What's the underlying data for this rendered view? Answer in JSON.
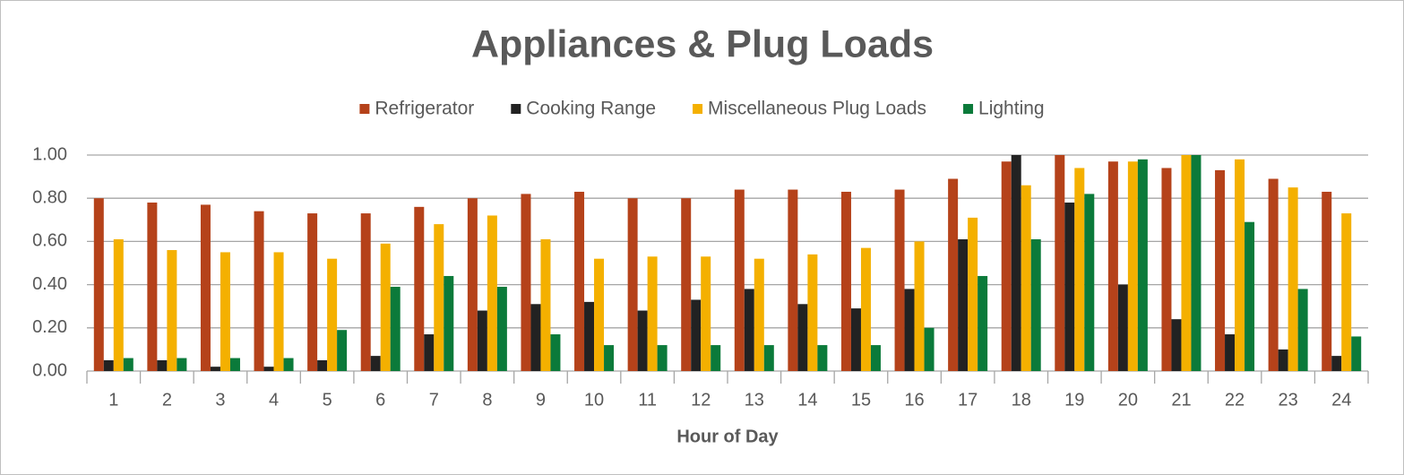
{
  "chart_data": {
    "type": "bar",
    "title": "Appliances & Plug Loads",
    "x_label": "Hour of Day",
    "categories": [
      "1",
      "2",
      "3",
      "4",
      "5",
      "6",
      "7",
      "8",
      "9",
      "10",
      "11",
      "12",
      "13",
      "14",
      "15",
      "16",
      "17",
      "18",
      "19",
      "20",
      "21",
      "22",
      "23",
      "24"
    ],
    "series": [
      {
        "name": "Refrigerator",
        "color": "#b5421a",
        "values": [
          0.8,
          0.78,
          0.77,
          0.74,
          0.73,
          0.73,
          0.76,
          0.8,
          0.82,
          0.83,
          0.8,
          0.8,
          0.84,
          0.84,
          0.83,
          0.84,
          0.89,
          0.97,
          1.0,
          0.97,
          0.94,
          0.93,
          0.89,
          0.83
        ]
      },
      {
        "name": "Cooking Range",
        "color": "#222222",
        "values": [
          0.05,
          0.05,
          0.02,
          0.02,
          0.05,
          0.07,
          0.17,
          0.28,
          0.31,
          0.32,
          0.28,
          0.33,
          0.38,
          0.31,
          0.29,
          0.38,
          0.61,
          1.0,
          0.78,
          0.4,
          0.24,
          0.17,
          0.1,
          0.07
        ]
      },
      {
        "name": "Miscellaneous Plug Loads",
        "color": "#f4b000",
        "values": [
          0.61,
          0.56,
          0.55,
          0.55,
          0.52,
          0.59,
          0.68,
          0.72,
          0.61,
          0.52,
          0.53,
          0.53,
          0.52,
          0.54,
          0.57,
          0.6,
          0.71,
          0.86,
          0.94,
          0.97,
          1.0,
          0.98,
          0.85,
          0.73
        ]
      },
      {
        "name": "Lighting",
        "color": "#0b7a3a",
        "values": [
          0.06,
          0.06,
          0.06,
          0.06,
          0.19,
          0.39,
          0.44,
          0.39,
          0.17,
          0.12,
          0.12,
          0.12,
          0.12,
          0.12,
          0.12,
          0.2,
          0.44,
          0.61,
          0.82,
          0.98,
          1.0,
          0.69,
          0.38,
          0.16
        ]
      }
    ],
    "ylim": [
      0,
      1
    ],
    "yticks": [
      {
        "value": 0,
        "label": "0.00"
      },
      {
        "value": 0.2,
        "label": "0.20"
      },
      {
        "value": 0.4,
        "label": "0.40"
      },
      {
        "value": 0.6,
        "label": "0.60"
      },
      {
        "value": 0.8,
        "label": "0.80"
      },
      {
        "value": 1,
        "label": "1.00"
      }
    ],
    "grid": true,
    "legend": "top"
  }
}
